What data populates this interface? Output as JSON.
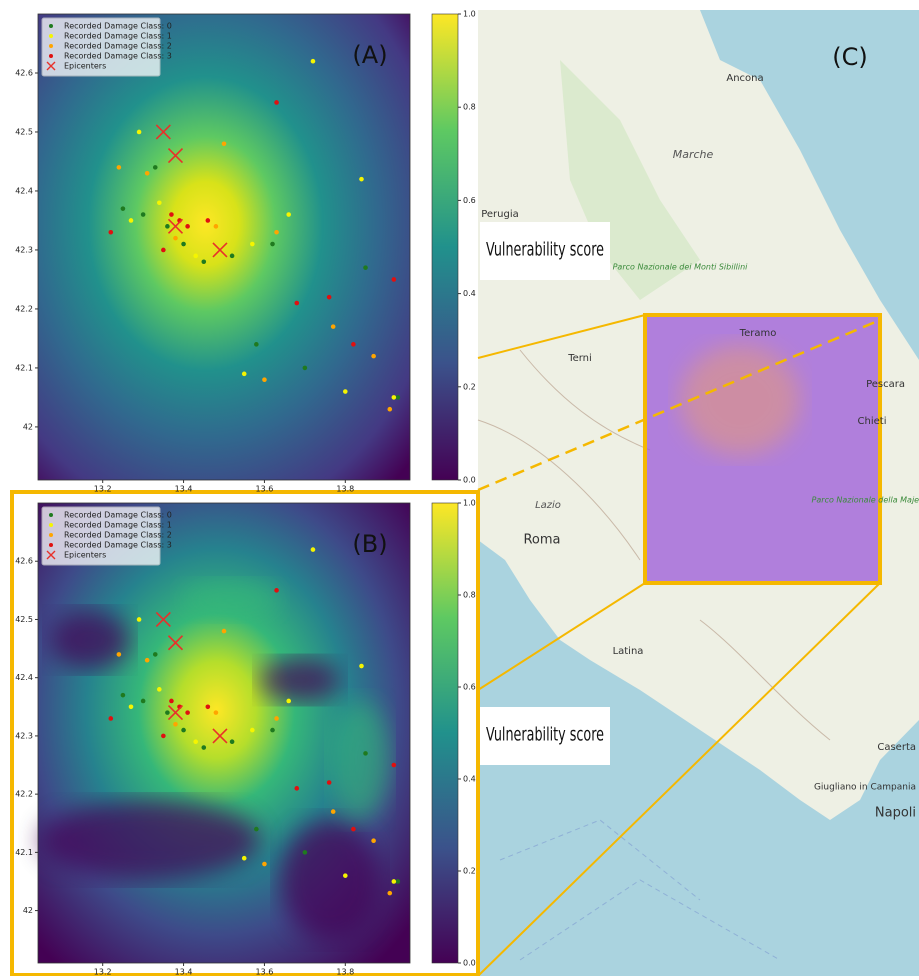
{
  "chart_data": [
    {
      "type": "scatter",
      "panel_label": "(A)",
      "legend": "upper left",
      "colorbar_label": "Vulnerability score",
      "xlim": [
        13.04,
        13.96
      ],
      "ylim": [
        41.91,
        42.7
      ],
      "xticks": [
        13.2,
        13.4,
        13.6,
        13.8
      ],
      "yticks": [
        42.0,
        42.1,
        42.2,
        42.3,
        42.4,
        42.5,
        42.6
      ],
      "colorbar_ticks": [
        {
          "value": 0,
          "label": "0.0"
        },
        {
          "value": 0.2,
          "label": "0.2"
        },
        {
          "value": 0.4,
          "label": "0.4"
        },
        {
          "value": 0.6,
          "label": "0.6"
        },
        {
          "value": 0.8,
          "label": "0.8"
        },
        {
          "value": 1,
          "label": "1.0"
        }
      ],
      "colorbar_lim": [
        0,
        1
      ],
      "series": [
        {
          "name": "Recorded Damage Class: 0",
          "color": "#1f7a1f",
          "marker": "dot",
          "x": [
            13.3,
            13.36,
            13.4,
            13.25,
            13.52,
            13.62,
            13.85,
            13.93,
            13.45,
            13.7,
            13.33,
            13.58
          ],
          "values": [
            42.36,
            42.34,
            42.31,
            42.37,
            42.29,
            42.31,
            42.27,
            42.05,
            42.28,
            42.1,
            42.44,
            42.14
          ]
        },
        {
          "name": "Recorded Damage Class: 1",
          "color": "#f5f500",
          "marker": "dot",
          "x": [
            13.27,
            13.34,
            13.43,
            13.55,
            13.8,
            13.92,
            13.57,
            13.72,
            13.29,
            13.66,
            13.84
          ],
          "values": [
            42.35,
            42.38,
            42.29,
            42.09,
            42.06,
            42.05,
            42.31,
            42.62,
            42.5,
            42.36,
            42.42
          ]
        },
        {
          "name": "Recorded Damage Class: 2",
          "color": "#ffa500",
          "marker": "dot",
          "x": [
            13.31,
            13.38,
            13.48,
            13.6,
            13.77,
            13.91,
            13.24,
            13.63,
            13.5,
            13.87
          ],
          "values": [
            42.43,
            42.32,
            42.34,
            42.08,
            42.17,
            42.03,
            42.44,
            42.33,
            42.48,
            42.12
          ]
        },
        {
          "name": "Recorded Damage Class: 3",
          "color": "#e01010",
          "marker": "dot",
          "x": [
            13.37,
            13.39,
            13.41,
            13.35,
            13.46,
            13.68,
            13.82,
            13.76,
            13.22,
            13.63,
            13.92
          ],
          "values": [
            42.36,
            42.35,
            42.34,
            42.3,
            42.35,
            42.21,
            42.14,
            42.22,
            42.33,
            42.55,
            42.25
          ]
        },
        {
          "name": "Epicenters",
          "color": "#e8302a",
          "marker": "cross",
          "x": [
            13.35,
            13.38,
            13.38,
            13.49
          ],
          "values": [
            42.5,
            42.46,
            42.34,
            42.3
          ]
        }
      ]
    },
    {
      "type": "scatter",
      "panel_label": "(B)",
      "legend": "upper left",
      "colorbar_label": "Vulnerability score",
      "xlim": [
        13.04,
        13.96
      ],
      "ylim": [
        41.91,
        42.7
      ],
      "xticks": [
        13.2,
        13.4,
        13.6,
        13.8
      ],
      "yticks": [
        42.0,
        42.1,
        42.2,
        42.3,
        42.4,
        42.5,
        42.6
      ],
      "colorbar_ticks": [
        {
          "value": 0,
          "label": "0.0"
        },
        {
          "value": 0.2,
          "label": "0.2"
        },
        {
          "value": 0.4,
          "label": "0.4"
        },
        {
          "value": 0.6,
          "label": "0.6"
        },
        {
          "value": 0.8,
          "label": "0.8"
        },
        {
          "value": 1,
          "label": "1.0"
        }
      ],
      "colorbar_lim": [
        0,
        1
      ],
      "series": [
        {
          "name": "Recorded Damage Class: 0",
          "color": "#1f7a1f",
          "marker": "dot",
          "x": [
            13.3,
            13.36,
            13.4,
            13.25,
            13.52,
            13.62,
            13.85,
            13.93,
            13.45,
            13.7,
            13.33,
            13.58
          ],
          "values": [
            42.36,
            42.34,
            42.31,
            42.37,
            42.29,
            42.31,
            42.27,
            42.05,
            42.28,
            42.1,
            42.44,
            42.14
          ]
        },
        {
          "name": "Recorded Damage Class: 1",
          "color": "#f5f500",
          "marker": "dot",
          "x": [
            13.27,
            13.34,
            13.43,
            13.55,
            13.8,
            13.92,
            13.57,
            13.72,
            13.29,
            13.66,
            13.84
          ],
          "values": [
            42.35,
            42.38,
            42.29,
            42.09,
            42.06,
            42.05,
            42.31,
            42.62,
            42.5,
            42.36,
            42.42
          ]
        },
        {
          "name": "Recorded Damage Class: 2",
          "color": "#ffa500",
          "marker": "dot",
          "x": [
            13.31,
            13.38,
            13.48,
            13.6,
            13.77,
            13.91,
            13.24,
            13.63,
            13.5,
            13.87
          ],
          "values": [
            42.43,
            42.32,
            42.34,
            42.08,
            42.17,
            42.03,
            42.44,
            42.33,
            42.48,
            42.12
          ]
        },
        {
          "name": "Recorded Damage Class: 3",
          "color": "#e01010",
          "marker": "dot",
          "x": [
            13.37,
            13.39,
            13.41,
            13.35,
            13.46,
            13.68,
            13.82,
            13.76,
            13.22,
            13.63,
            13.92
          ],
          "values": [
            42.36,
            42.35,
            42.34,
            42.3,
            42.35,
            42.21,
            42.14,
            42.22,
            42.33,
            42.55,
            42.25
          ]
        },
        {
          "name": "Epicenters",
          "color": "#e8302a",
          "marker": "cross",
          "x": [
            13.35,
            13.38,
            13.38,
            13.49
          ],
          "values": [
            42.5,
            42.46,
            42.34,
            42.3
          ]
        }
      ]
    }
  ],
  "map": {
    "panel_label": "(C)",
    "places": [
      "Ancona",
      "Marche",
      "Perugia",
      "Parco Nazionale dei Monti Sibillini",
      "Terni",
      "Teramo",
      "Pescara",
      "Chieti",
      "Lazio",
      "Roma",
      "Parco Nazionale della Majella",
      "Latina",
      "Caserta",
      "Giugliano in Campania",
      "Napoli"
    ]
  }
}
